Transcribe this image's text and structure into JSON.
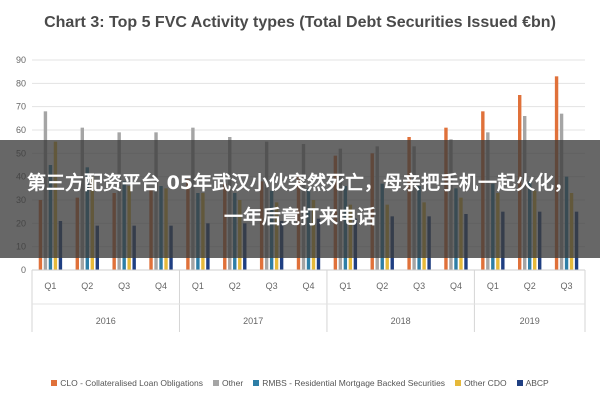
{
  "chart_data": {
    "type": "bar",
    "title": "Chart 3: Top 5 FVC Activity types (Total Debt Securities Issued €bn)",
    "xlabel": "",
    "ylabel": "",
    "ylim": [
      0,
      90
    ],
    "yticks": [
      0,
      10,
      20,
      30,
      40,
      50,
      60,
      70,
      80,
      90
    ],
    "grid": true,
    "legend_position": "bottom",
    "categories": [
      "Q1",
      "Q2",
      "Q3",
      "Q4",
      "Q1",
      "Q2",
      "Q3",
      "Q4",
      "Q1",
      "Q2",
      "Q3",
      "Q4",
      "Q1",
      "Q2",
      "Q3"
    ],
    "groups": [
      {
        "label": "2016",
        "span": 4
      },
      {
        "label": "2017",
        "span": 4
      },
      {
        "label": "2018",
        "span": 4
      },
      {
        "label": "2019",
        "span": 3
      }
    ],
    "series": [
      {
        "name": "CLO - Collateralised Loan Obligations",
        "color": "#e0713a",
        "values": [
          30,
          31,
          33,
          35,
          39,
          37,
          38,
          40,
          49,
          50,
          57,
          61,
          68,
          75,
          83
        ]
      },
      {
        "name": "Other",
        "color": "#a5a5a5",
        "values": [
          68,
          61,
          59,
          59,
          61,
          57,
          55,
          54,
          52,
          53,
          53,
          56,
          59,
          66,
          67
        ]
      },
      {
        "name": "RMBS - Residential Mortgage Backed Securities",
        "color": "#2e7ea6",
        "values": [
          45,
          44,
          38,
          36,
          33,
          33,
          34,
          35,
          36,
          37,
          36,
          35,
          37,
          38,
          40
        ]
      },
      {
        "name": "Other CDO",
        "color": "#e6b93a",
        "values": [
          55,
          40,
          36,
          35,
          33,
          30,
          29,
          30,
          28,
          28,
          29,
          31,
          33,
          34,
          33
        ]
      },
      {
        "name": "ABCP",
        "color": "#1f3f82",
        "values": [
          21,
          19,
          19,
          19,
          20,
          20,
          21,
          22,
          22,
          23,
          23,
          24,
          25,
          25,
          25
        ]
      }
    ]
  },
  "overlay": {
    "text": "第三方配资平台 05年武汉小伙突然死亡，母亲把手机一起火化，一年后竟打来电话"
  }
}
